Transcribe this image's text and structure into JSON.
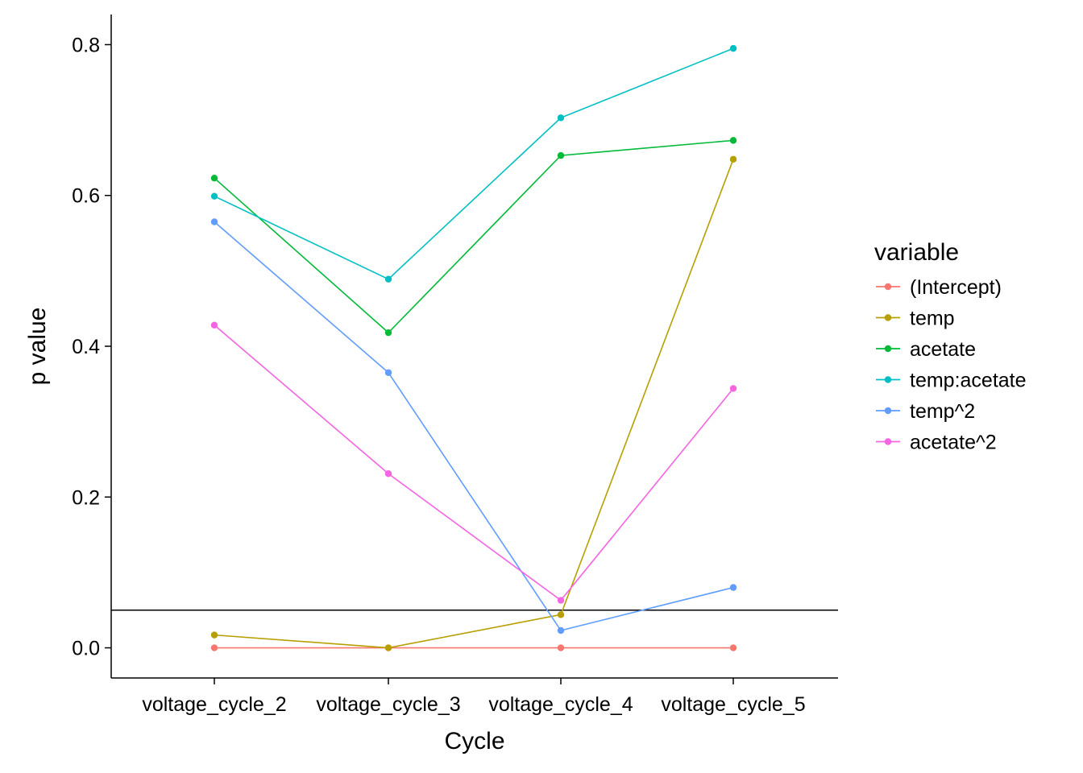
{
  "chart_data": {
    "type": "line",
    "xlabel": "Cycle",
    "ylabel": "p value",
    "categories": [
      "voltage_cycle_2",
      "voltage_cycle_3",
      "voltage_cycle_4",
      "voltage_cycle_5"
    ],
    "ylim": [
      -0.04,
      0.84
    ],
    "yticks": [
      0.0,
      0.2,
      0.4,
      0.6,
      0.8
    ],
    "ytick_labels": [
      "0.0",
      "0.2",
      "0.4",
      "0.6",
      "0.8"
    ],
    "reference_line": 0.05,
    "grid": false,
    "legend": {
      "title": "variable",
      "position": "right"
    },
    "series": [
      {
        "name": "(Intercept)",
        "color": "#F8766D",
        "values": [
          0.0,
          0.0,
          0.0,
          0.0
        ]
      },
      {
        "name": "temp",
        "color": "#B79F00",
        "values": [
          0.017,
          0.0,
          0.044,
          0.648
        ]
      },
      {
        "name": "acetate",
        "color": "#00BA38",
        "values": [
          0.623,
          0.418,
          0.653,
          0.673
        ]
      },
      {
        "name": "temp:acetate",
        "color": "#00BFC4",
        "values": [
          0.599,
          0.489,
          0.703,
          0.795
        ]
      },
      {
        "name": "temp^2",
        "color": "#619CFF",
        "values": [
          0.565,
          0.365,
          0.023,
          0.08
        ]
      },
      {
        "name": "acetate^2",
        "color": "#F564E3",
        "values": [
          0.428,
          0.231,
          0.063,
          0.344
        ]
      }
    ]
  }
}
